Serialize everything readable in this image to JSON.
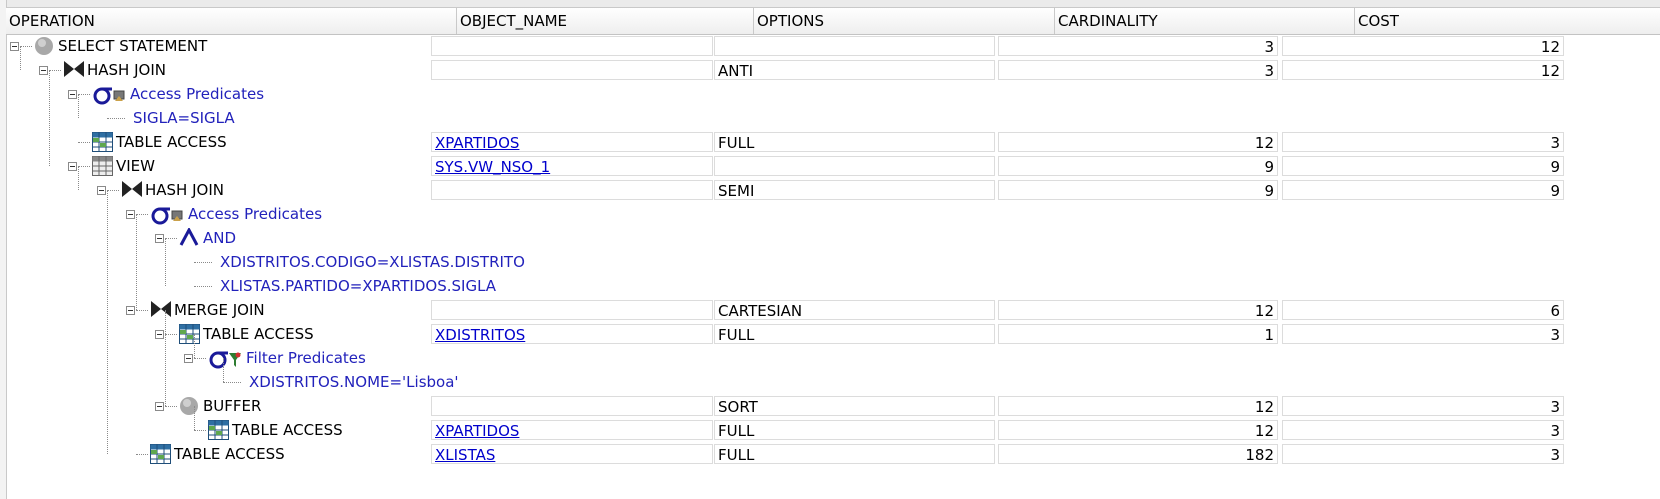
{
  "columns": [
    "OPERATION",
    "OBJECT_NAME",
    "OPTIONS",
    "CARDINALITY",
    "COST"
  ],
  "rows": [
    {
      "label": "SELECT STATEMENT",
      "object": "",
      "options": "",
      "card": "3",
      "cost": "12"
    },
    {
      "label": "HASH JOIN",
      "object": "",
      "options": "ANTI",
      "card": "3",
      "cost": "12"
    },
    {
      "label": "Access Predicates"
    },
    {
      "label": "SIGLA=SIGLA"
    },
    {
      "label": "TABLE ACCESS",
      "object": "XPARTIDOS",
      "options": "FULL",
      "card": "12",
      "cost": "3"
    },
    {
      "label": "VIEW",
      "object": "SYS.VW_NSO_1",
      "options": "",
      "card": "9",
      "cost": "9"
    },
    {
      "label": "HASH JOIN",
      "object": "",
      "options": "SEMI",
      "card": "9",
      "cost": "9"
    },
    {
      "label": "Access Predicates"
    },
    {
      "label": "AND"
    },
    {
      "label": "XDISTRITOS.CODIGO=XLISTAS.DISTRITO"
    },
    {
      "label": "XLISTAS.PARTIDO=XPARTIDOS.SIGLA"
    },
    {
      "label": "MERGE JOIN",
      "object": "",
      "options": "CARTESIAN",
      "card": "12",
      "cost": "6"
    },
    {
      "label": "TABLE ACCESS",
      "object": "XDISTRITOS",
      "options": "FULL",
      "card": "1",
      "cost": "3"
    },
    {
      "label": "Filter Predicates"
    },
    {
      "label": "XDISTRITOS.NOME='Lisboa'"
    },
    {
      "label": "BUFFER",
      "object": "",
      "options": "SORT",
      "card": "12",
      "cost": "3"
    },
    {
      "label": "TABLE ACCESS",
      "object": "XPARTIDOS",
      "options": "FULL",
      "card": "12",
      "cost": "3"
    },
    {
      "label": "TABLE ACCESS",
      "object": "XLISTAS",
      "options": "FULL",
      "card": "182",
      "cost": "3"
    }
  ]
}
